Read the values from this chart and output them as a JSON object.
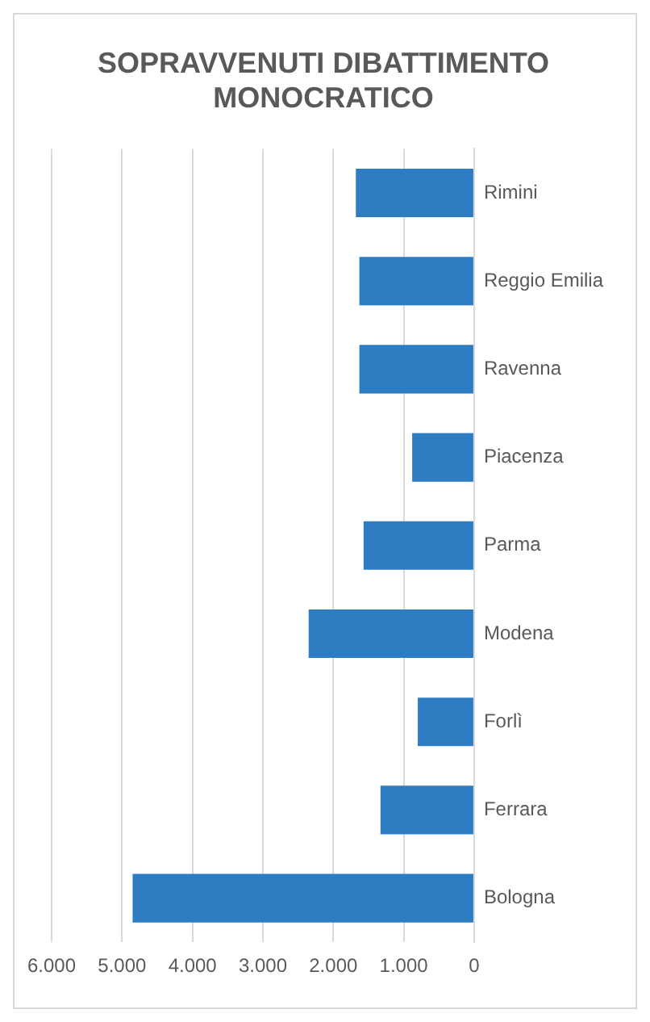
{
  "chart_data": {
    "type": "bar",
    "orientation": "horizontal",
    "title": "SOPRAVVENUTI DIBATTIMENTO MONOCRATICO",
    "categories": [
      "Rimini",
      "Reggio Emilia",
      "Ravenna",
      "Piacenza",
      "Parma",
      "Modena",
      "Forlì",
      "Ferrara",
      "Bologna"
    ],
    "values": [
      1680,
      1630,
      1630,
      880,
      1570,
      2350,
      800,
      1330,
      4850
    ],
    "color": "#2e7dc2",
    "xlim": [
      6000,
      0
    ],
    "xticks": [
      {
        "value": 6000,
        "label": "6.000"
      },
      {
        "value": 5000,
        "label": "5.000"
      },
      {
        "value": 4000,
        "label": "4.000"
      },
      {
        "value": 3000,
        "label": "3.000"
      },
      {
        "value": 2000,
        "label": "2.000"
      },
      {
        "value": 1000,
        "label": "1.000"
      },
      {
        "value": 0,
        "label": "0"
      }
    ],
    "grid": "x",
    "legend": false
  }
}
